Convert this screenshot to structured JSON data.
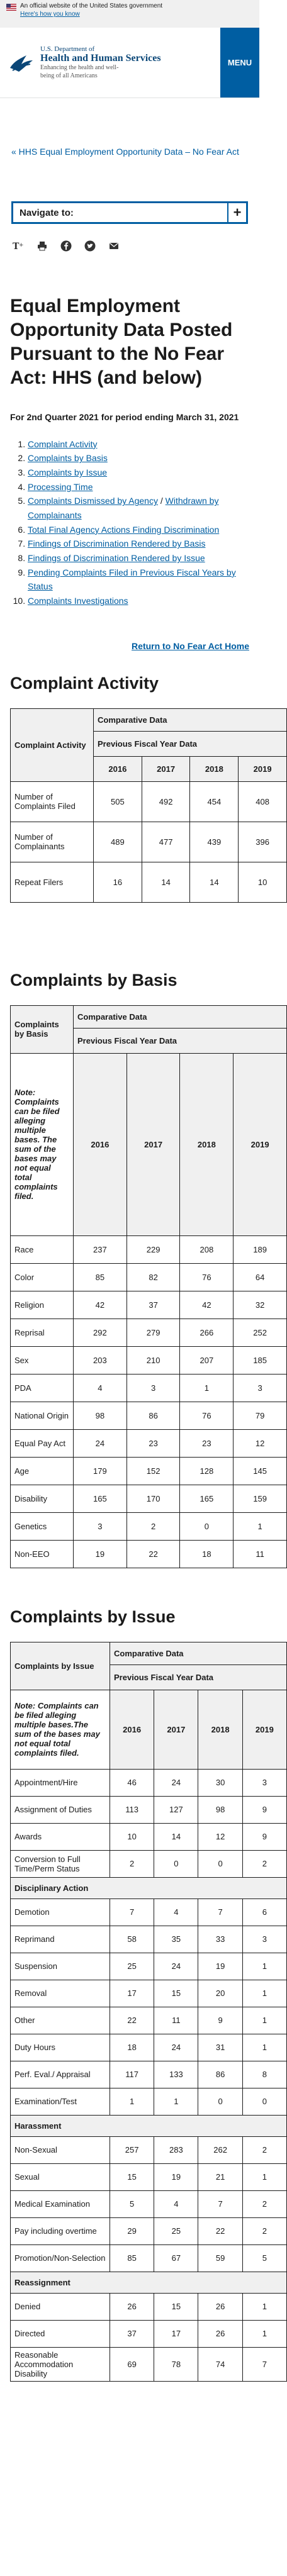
{
  "banner": {
    "text": "An official website of the United States government",
    "how": "Here's how you know"
  },
  "header": {
    "dept": "U.S. Department of",
    "name": "Health and Human Services",
    "tagline": "Enhancing the health and well-being of all Americans",
    "menu": "MENU"
  },
  "breadcrumb": "« HHS Equal Employment Opportunity Data – No Fear Act",
  "navigate": {
    "label": "Navigate to:",
    "plus": "+"
  },
  "page_title": "Equal Employment Opportunity Data Posted Pursuant to the No Fear Act: HHS (and below)",
  "period": "For 2nd Quarter 2021 for period ending March 31, 2021",
  "toc": [
    "Complaint Activity",
    "Complaints by Basis",
    "Complaints by Issue",
    "Processing Time",
    "Complaints Dismissed by Agency",
    "Withdrawn by Complainants",
    "Total Final Agency Actions Finding Discrimination",
    "Findings of Discrimination Rendered by Basis",
    "Findings of Discrimination Rendered by Issue",
    "Pending Complaints Filed in Previous Fiscal Years by Status",
    "Complaints Investigations"
  ],
  "return_link": "Return to No Fear Act Home",
  "years": [
    "2016",
    "2017",
    "2018",
    "2019"
  ],
  "comparative": "Comparative Data",
  "previous": "Previous Fiscal Year Data",
  "activity": {
    "title": "Complaint Activity",
    "corner": "Complaint Activity",
    "rows": [
      {
        "label": "Number of Complaints Filed",
        "v": [
          "505",
          "492",
          "454",
          "408"
        ]
      },
      {
        "label": "Number of Complainants",
        "v": [
          "489",
          "477",
          "439",
          "396"
        ]
      },
      {
        "label": "Repeat Filers",
        "v": [
          "16",
          "14",
          "14",
          "10"
        ]
      }
    ]
  },
  "basis": {
    "title": "Complaints by Basis",
    "corner": "Complaints by Basis",
    "note": "Note: Complaints can be filed alleging multiple bases. The sum of the bases may not equal total complaints filed.",
    "rows": [
      {
        "label": "Race",
        "v": [
          "237",
          "229",
          "208",
          "189"
        ]
      },
      {
        "label": "Color",
        "v": [
          "85",
          "82",
          "76",
          "64"
        ]
      },
      {
        "label": "Religion",
        "v": [
          "42",
          "37",
          "42",
          "32"
        ]
      },
      {
        "label": "Reprisal",
        "v": [
          "292",
          "279",
          "266",
          "252"
        ]
      },
      {
        "label": "Sex",
        "v": [
          "203",
          "210",
          "207",
          "185"
        ]
      },
      {
        "label": "PDA",
        "v": [
          "4",
          "3",
          "1",
          "3"
        ]
      },
      {
        "label": "National Origin",
        "v": [
          "98",
          "86",
          "76",
          "79"
        ]
      },
      {
        "label": "Equal Pay Act",
        "v": [
          "24",
          "23",
          "23",
          "12"
        ]
      },
      {
        "label": "Age",
        "v": [
          "179",
          "152",
          "128",
          "145"
        ]
      },
      {
        "label": "Disability",
        "v": [
          "165",
          "170",
          "165",
          "159"
        ]
      },
      {
        "label": "Genetics",
        "v": [
          "3",
          "2",
          "0",
          "1"
        ]
      },
      {
        "label": "Non-EEO",
        "v": [
          "19",
          "22",
          "18",
          "11"
        ]
      }
    ]
  },
  "issue": {
    "title": "Complaints by Issue",
    "corner": "Complaints by Issue",
    "note": "Note: Complaints can be filed alleging multiple bases.The sum of the bases may not equal total complaints filed.",
    "rows": [
      {
        "label": "Appointment/Hire",
        "v": [
          "46",
          "24",
          "30",
          "3"
        ]
      },
      {
        "label": "Assignment of Duties",
        "v": [
          "113",
          "127",
          "98",
          "9"
        ]
      },
      {
        "label": "Awards",
        "v": [
          "10",
          "14",
          "12",
          "9"
        ]
      },
      {
        "label": "Conversion to Full Time/Perm Status",
        "v": [
          "2",
          "0",
          "0",
          "2"
        ]
      },
      {
        "section": "Disciplinary Action"
      },
      {
        "label": "Demotion",
        "v": [
          "7",
          "4",
          "7",
          "6"
        ]
      },
      {
        "label": "Reprimand",
        "v": [
          "58",
          "35",
          "33",
          "3"
        ]
      },
      {
        "label": "Suspension",
        "v": [
          "25",
          "24",
          "19",
          "1"
        ]
      },
      {
        "label": "Removal",
        "v": [
          "17",
          "15",
          "20",
          "1"
        ]
      },
      {
        "label": "Other",
        "v": [
          "22",
          "11",
          "9",
          "1"
        ]
      },
      {
        "label": "Duty Hours",
        "v": [
          "18",
          "24",
          "31",
          "1"
        ]
      },
      {
        "label": "Perf. Eval./ Appraisal",
        "v": [
          "117",
          "133",
          "86",
          "8"
        ]
      },
      {
        "label": "Examination/Test",
        "v": [
          "1",
          "1",
          "0",
          "0"
        ]
      },
      {
        "section": "Harassment"
      },
      {
        "label": "Non-Sexual",
        "v": [
          "257",
          "283",
          "262",
          "2"
        ]
      },
      {
        "label": "Sexual",
        "v": [
          "15",
          "19",
          "21",
          "1"
        ]
      },
      {
        "label": "Medical Examination",
        "v": [
          "5",
          "4",
          "7",
          "2"
        ]
      },
      {
        "label": "Pay including overtime",
        "v": [
          "29",
          "25",
          "22",
          "2"
        ]
      },
      {
        "label": "Promotion/Non-Selection",
        "v": [
          "85",
          "67",
          "59",
          "5"
        ]
      },
      {
        "section": "Reassignment"
      },
      {
        "label": "Denied",
        "v": [
          "26",
          "15",
          "26",
          "1"
        ]
      },
      {
        "label": "Directed",
        "v": [
          "37",
          "17",
          "26",
          "1"
        ]
      },
      {
        "label": "Reasonable Accommodation Disability",
        "v": [
          "69",
          "78",
          "74",
          "7"
        ]
      }
    ]
  }
}
